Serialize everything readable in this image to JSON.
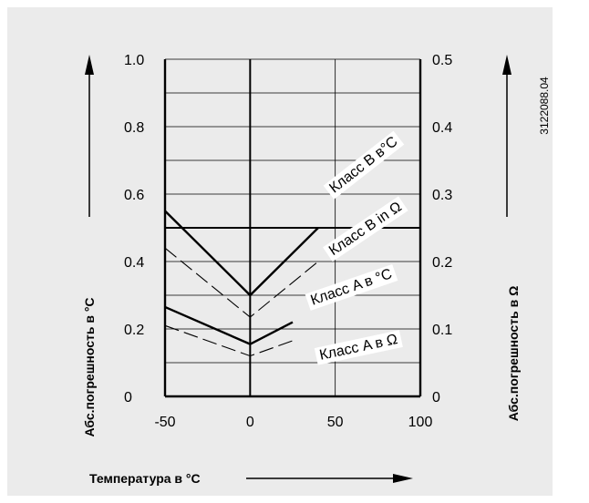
{
  "figure_id": "3122088.04",
  "chart_data": {
    "type": "line",
    "x": [
      -50,
      0,
      100
    ],
    "xlim": [
      -50,
      100
    ],
    "ylim": [
      0,
      1.0
    ],
    "y2lim": [
      0,
      0.5
    ],
    "x_ticks": [
      "-50",
      "0",
      "50",
      "100"
    ],
    "y_ticks": [
      "1.0",
      "0.8",
      "0.6",
      "0.4",
      "0.2",
      "0"
    ],
    "y2_ticks": [
      "0.5",
      "0.4",
      "0.3",
      "0.2",
      "0.1",
      "0"
    ],
    "xlabel": "Температура в °C",
    "ylabel": "Абс.погрешность в  °C",
    "y2label": "Абс.погрешность в Ω",
    "grid": true,
    "series": [
      {
        "name": "Класс B в°C",
        "axis": "left",
        "style": "solid",
        "x": [
          -50,
          0,
          40
        ],
        "y": [
          0.55,
          0.3,
          0.5
        ]
      },
      {
        "name": "Класс B in Ω",
        "axis": "left",
        "style": "dashed",
        "x": [
          -50,
          0,
          40
        ],
        "y": [
          0.44,
          0.235,
          0.4
        ]
      },
      {
        "name": "Класс A в °C",
        "axis": "left",
        "style": "solid",
        "x": [
          -50,
          0,
          25
        ],
        "y": [
          0.265,
          0.155,
          0.22
        ]
      },
      {
        "name": "Класс A в Ω",
        "axis": "left",
        "style": "dashed",
        "x": [
          -50,
          0,
          25
        ],
        "y": [
          0.21,
          0.12,
          0.165
        ]
      }
    ]
  }
}
